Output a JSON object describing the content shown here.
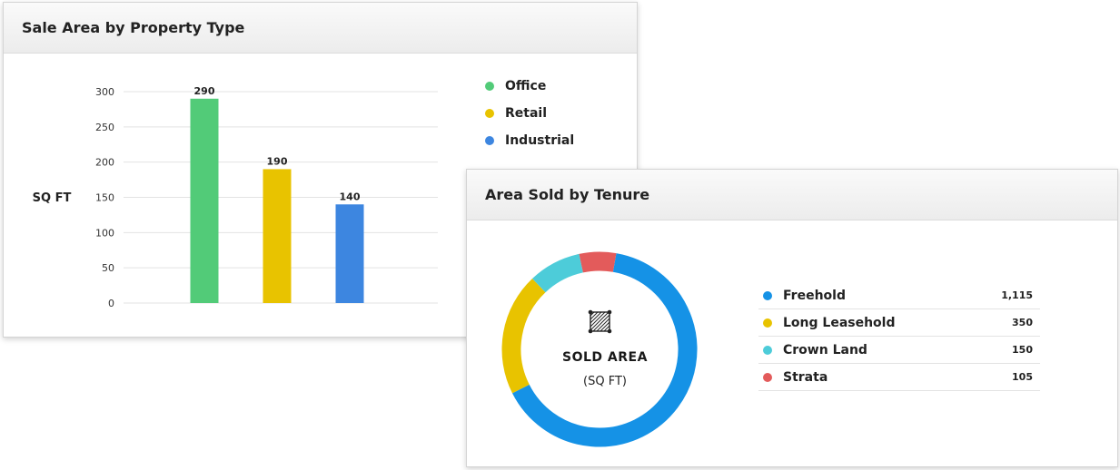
{
  "bar_card": {
    "title": "Sale Area by Property Type"
  },
  "donut_card": {
    "title": "Area Sold by Tenure",
    "center_label": "SOLD AREA",
    "center_unit": "(SQ FT)"
  },
  "icons": {
    "area": "hatched-square-icon"
  },
  "chart_data": [
    {
      "type": "bar",
      "title": "Sale Area by Property Type",
      "ylabel": "SQ FT",
      "ylim": [
        0,
        300
      ],
      "yticks": [
        0,
        50,
        100,
        150,
        200,
        250,
        300
      ],
      "grid": true,
      "legend": "right",
      "categories": [
        "Office",
        "Retail",
        "Industrial"
      ],
      "values": [
        290,
        190,
        140
      ],
      "data_labels": [
        "290",
        "190",
        "140"
      ],
      "colors": [
        "#52cb78",
        "#e8c300",
        "#3d86e0"
      ]
    },
    {
      "type": "pie",
      "variant": "donut",
      "title": "Area Sold by Tenure",
      "legend": "right",
      "labels": [
        "Freehold",
        "Long Leasehold",
        "Crown Land",
        "Strata"
      ],
      "values": [
        1115,
        350,
        150,
        105
      ],
      "value_labels": [
        "1,115",
        "350",
        "150",
        "105"
      ],
      "colors": [
        "#1592e6",
        "#e8c300",
        "#4dccd9",
        "#e35b5b"
      ]
    }
  ]
}
